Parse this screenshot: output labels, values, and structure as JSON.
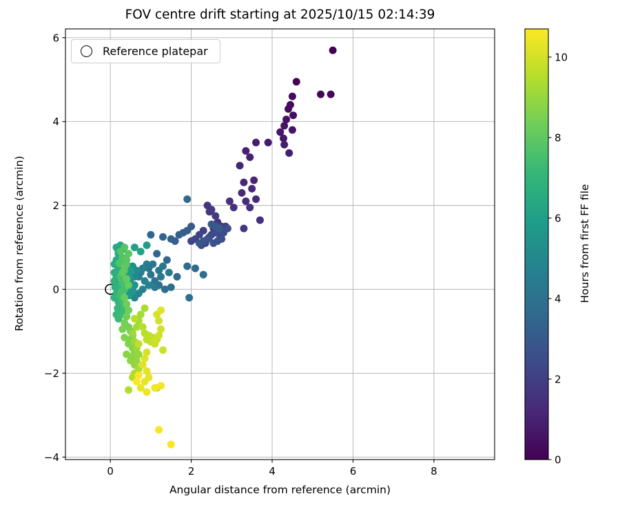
{
  "chart_data": {
    "type": "scatter",
    "title": "FOV centre drift starting at 2025/10/15 02:14:39",
    "xlabel": "Angular distance from reference (arcmin)",
    "ylabel": "Rotation from reference (arcmin)",
    "xlim": [
      -1.11,
      9.5
    ],
    "ylim": [
      -4.06,
      6.21
    ],
    "xticks": [
      0,
      2,
      4,
      6,
      8
    ],
    "yticks": [
      -4,
      -2,
      0,
      2,
      4,
      6
    ],
    "grid": true,
    "grid_color": "#b0b0b0",
    "legend_entries": [
      {
        "label": "Reference platepar",
        "marker": "open-circle"
      }
    ],
    "reference_point": {
      "x": 0,
      "y": 0
    },
    "colorbar": {
      "label": "Hours from first FF file",
      "min": 0,
      "max": 10.7,
      "ticks": [
        0,
        2,
        4,
        6,
        8,
        10
      ],
      "colormap": [
        "#440154",
        "#482878",
        "#3e4989",
        "#31688e",
        "#26828e",
        "#1f9e89",
        "#35b779",
        "#6ece58",
        "#b5de2b",
        "#fde725"
      ]
    },
    "points": [
      [
        5.5,
        5.7,
        0.0
      ],
      [
        4.6,
        4.95,
        0.08
      ],
      [
        5.2,
        4.65,
        0.14
      ],
      [
        5.45,
        4.65,
        0.2
      ],
      [
        4.5,
        4.6,
        0.26
      ],
      [
        4.45,
        4.4,
        0.32
      ],
      [
        4.4,
        4.3,
        0.38
      ],
      [
        4.52,
        4.15,
        0.44
      ],
      [
        4.35,
        4.05,
        0.5
      ],
      [
        4.3,
        3.9,
        0.55
      ],
      [
        4.5,
        3.8,
        0.6
      ],
      [
        4.2,
        3.75,
        0.65
      ],
      [
        4.28,
        3.6,
        0.7
      ],
      [
        3.6,
        3.5,
        0.75
      ],
      [
        3.9,
        3.5,
        0.8
      ],
      [
        4.3,
        3.45,
        0.85
      ],
      [
        4.42,
        3.25,
        0.9
      ],
      [
        3.35,
        3.3,
        0.95
      ],
      [
        3.45,
        3.15,
        1.0
      ],
      [
        3.2,
        2.95,
        1.05
      ],
      [
        3.55,
        2.6,
        1.1
      ],
      [
        3.3,
        2.55,
        1.15
      ],
      [
        3.5,
        2.4,
        1.2
      ],
      [
        3.25,
        2.3,
        1.25
      ],
      [
        3.6,
        2.15,
        1.3
      ],
      [
        3.35,
        2.1,
        1.35
      ],
      [
        3.45,
        1.95,
        1.4
      ],
      [
        3.7,
        1.65,
        1.45
      ],
      [
        2.95,
        2.1,
        1.5
      ],
      [
        3.05,
        1.95,
        1.55
      ],
      [
        2.4,
        2.0,
        1.6
      ],
      [
        2.45,
        1.85,
        1.65
      ],
      [
        3.3,
        1.45,
        1.7
      ],
      [
        2.65,
        1.6,
        1.75
      ],
      [
        2.75,
        1.5,
        1.8
      ],
      [
        2.5,
        1.9,
        1.85
      ],
      [
        2.6,
        1.75,
        1.9
      ],
      [
        2.85,
        1.5,
        1.95
      ],
      [
        2.55,
        1.45,
        2.0
      ],
      [
        2.3,
        1.4,
        2.05
      ],
      [
        2.5,
        1.3,
        2.1
      ],
      [
        2.2,
        1.3,
        2.15
      ],
      [
        2.1,
        1.2,
        2.2
      ],
      [
        2.0,
        1.15,
        2.25
      ],
      [
        2.35,
        1.1,
        2.3
      ],
      [
        2.25,
        1.05,
        2.35
      ],
      [
        2.45,
        1.25,
        2.4
      ],
      [
        2.6,
        1.35,
        2.45
      ],
      [
        2.7,
        1.3,
        2.5
      ],
      [
        2.8,
        1.35,
        2.55
      ],
      [
        2.9,
        1.45,
        2.6
      ],
      [
        2.75,
        1.2,
        2.65
      ],
      [
        2.65,
        1.15,
        2.7
      ],
      [
        2.55,
        1.1,
        2.75
      ],
      [
        2.4,
        1.2,
        2.8
      ],
      [
        2.3,
        1.15,
        2.85
      ],
      [
        2.2,
        1.1,
        2.9
      ],
      [
        2.5,
        1.55,
        2.95
      ],
      [
        2.6,
        1.5,
        3.0
      ],
      [
        2.7,
        1.45,
        3.05
      ],
      [
        2.0,
        1.5,
        3.1
      ],
      [
        1.9,
        1.4,
        3.15
      ],
      [
        1.8,
        1.35,
        3.2
      ],
      [
        1.7,
        1.3,
        3.25
      ],
      [
        1.6,
        1.15,
        3.3
      ],
      [
        1.5,
        1.2,
        3.35
      ],
      [
        1.3,
        1.25,
        3.4
      ],
      [
        1.0,
        1.3,
        3.45
      ],
      [
        1.15,
        0.85,
        3.5
      ],
      [
        1.4,
        0.7,
        3.55
      ],
      [
        1.9,
        2.15,
        3.6
      ],
      [
        1.9,
        0.55,
        3.65
      ],
      [
        2.1,
        0.5,
        3.7
      ],
      [
        1.65,
        0.3,
        3.75
      ],
      [
        2.3,
        0.35,
        3.8
      ],
      [
        1.95,
        -0.2,
        3.85
      ],
      [
        1.5,
        0.05,
        3.9
      ],
      [
        1.35,
        0.0,
        3.95
      ],
      [
        1.2,
        0.1,
        4.0
      ],
      [
        1.1,
        0.2,
        4.05
      ],
      [
        1.0,
        0.35,
        4.1
      ],
      [
        0.95,
        0.5,
        4.15
      ],
      [
        1.05,
        0.6,
        4.2
      ],
      [
        1.2,
        0.45,
        4.25
      ],
      [
        1.3,
        0.55,
        4.3
      ],
      [
        1.45,
        0.4,
        4.35
      ],
      [
        1.25,
        0.3,
        4.4
      ],
      [
        1.1,
        0.05,
        4.45
      ],
      [
        0.9,
        0.6,
        4.5
      ],
      [
        0.8,
        0.5,
        4.55
      ],
      [
        0.75,
        0.4,
        4.6
      ],
      [
        0.7,
        0.3,
        4.65
      ],
      [
        0.85,
        0.2,
        4.7
      ],
      [
        0.95,
        0.1,
        4.75
      ],
      [
        0.8,
        0.0,
        4.8
      ],
      [
        0.7,
        -0.1,
        4.85
      ],
      [
        0.6,
        -0.2,
        4.9
      ],
      [
        0.55,
        0.0,
        4.95
      ],
      [
        0.5,
        0.15,
        5.0
      ],
      [
        0.6,
        0.3,
        5.05
      ],
      [
        0.65,
        0.45,
        5.1
      ],
      [
        0.55,
        0.55,
        5.2
      ],
      [
        0.45,
        0.4,
        5.3
      ],
      [
        0.5,
        0.25,
        5.4
      ],
      [
        0.6,
        0.1,
        5.5
      ],
      [
        0.55,
        -0.05,
        5.6
      ],
      [
        0.45,
        -0.15,
        5.7
      ],
      [
        0.4,
        0.0,
        5.8
      ],
      [
        0.35,
        0.15,
        5.85
      ],
      [
        0.45,
        0.3,
        5.9
      ],
      [
        0.9,
        1.05,
        5.95
      ],
      [
        0.5,
        0.45,
        6.0
      ],
      [
        0.4,
        0.55,
        6.05
      ],
      [
        0.6,
        1.0,
        6.1
      ],
      [
        0.75,
        0.9,
        6.15
      ],
      [
        0.3,
        0.7,
        6.2
      ],
      [
        0.25,
        0.8,
        6.25
      ],
      [
        0.2,
        0.9,
        6.3
      ],
      [
        0.15,
        1.0,
        6.35
      ],
      [
        0.25,
        1.05,
        6.4
      ],
      [
        0.3,
        0.95,
        6.45
      ],
      [
        0.2,
        0.85,
        6.5
      ],
      [
        0.15,
        0.7,
        6.55
      ],
      [
        0.1,
        0.6,
        6.6
      ],
      [
        0.2,
        0.5,
        6.65
      ],
      [
        0.25,
        0.4,
        6.7
      ],
      [
        0.1,
        0.4,
        6.72
      ],
      [
        0.15,
        0.3,
        6.75
      ],
      [
        0.15,
        0.15,
        6.78
      ],
      [
        0.1,
        0.2,
        6.8
      ],
      [
        0.12,
        0.05,
        6.82
      ],
      [
        0.2,
        0.1,
        6.85
      ],
      [
        0.25,
        0.0,
        6.9
      ],
      [
        0.15,
        -0.1,
        6.95
      ],
      [
        0.1,
        -0.2,
        7.0
      ],
      [
        0.2,
        -0.3,
        7.05
      ],
      [
        0.3,
        -0.4,
        7.1
      ],
      [
        0.18,
        -0.45,
        7.12
      ],
      [
        0.25,
        -0.5,
        7.15
      ],
      [
        0.15,
        -0.6,
        7.2
      ],
      [
        0.2,
        -0.7,
        7.25
      ],
      [
        0.3,
        -0.6,
        7.3
      ],
      [
        0.35,
        -0.45,
        7.35
      ],
      [
        0.3,
        -0.3,
        7.4
      ],
      [
        0.25,
        -0.15,
        7.45
      ],
      [
        0.28,
        -0.05,
        7.48
      ],
      [
        0.35,
        0.0,
        7.5
      ],
      [
        0.3,
        0.15,
        7.55
      ],
      [
        0.25,
        0.3,
        7.6
      ],
      [
        0.35,
        0.45,
        7.65
      ],
      [
        0.22,
        0.62,
        7.68
      ],
      [
        0.4,
        0.6,
        7.7
      ],
      [
        0.3,
        0.75,
        7.75
      ],
      [
        0.25,
        0.9,
        7.8
      ],
      [
        0.35,
        1.0,
        7.85
      ],
      [
        0.45,
        0.85,
        7.9
      ],
      [
        0.4,
        0.7,
        7.95
      ],
      [
        0.35,
        0.55,
        8.0
      ],
      [
        0.3,
        0.4,
        8.05
      ],
      [
        0.4,
        0.25,
        8.1
      ],
      [
        0.45,
        0.1,
        8.15
      ],
      [
        0.35,
        -0.2,
        8.2
      ],
      [
        0.4,
        -0.35,
        8.25
      ],
      [
        0.45,
        -0.5,
        8.3
      ],
      [
        0.4,
        -0.65,
        8.35
      ],
      [
        0.35,
        -0.8,
        8.4
      ],
      [
        0.45,
        -0.9,
        8.45
      ],
      [
        0.5,
        -1.0,
        8.5
      ],
      [
        0.3,
        -0.95,
        8.52
      ],
      [
        0.55,
        -1.1,
        8.55
      ],
      [
        0.5,
        -1.2,
        8.6
      ],
      [
        0.35,
        -1.15,
        8.62
      ],
      [
        0.45,
        -1.3,
        8.65
      ],
      [
        0.55,
        -1.4,
        8.7
      ],
      [
        0.6,
        -1.5,
        8.75
      ],
      [
        0.4,
        -1.55,
        8.78
      ],
      [
        0.55,
        -1.6,
        8.8
      ],
      [
        0.5,
        -1.7,
        8.85
      ],
      [
        0.6,
        -1.8,
        8.9
      ],
      [
        0.65,
        -1.7,
        8.95
      ],
      [
        0.7,
        -1.55,
        9.0
      ],
      [
        0.65,
        -1.4,
        9.05
      ],
      [
        0.6,
        -1.25,
        9.1
      ],
      [
        0.55,
        -1.05,
        9.15
      ],
      [
        0.65,
        -0.9,
        9.2
      ],
      [
        0.7,
        -0.75,
        9.25
      ],
      [
        0.75,
        -0.6,
        9.3
      ],
      [
        0.85,
        -0.45,
        9.32
      ],
      [
        0.7,
        -1.9,
        9.35
      ],
      [
        0.6,
        -2.0,
        9.4
      ],
      [
        0.45,
        -2.4,
        9.42
      ],
      [
        0.55,
        -2.1,
        9.45
      ],
      [
        1.15,
        -2.35,
        9.47
      ],
      [
        0.8,
        -0.9,
        9.5
      ],
      [
        0.6,
        -0.7,
        9.52
      ],
      [
        0.85,
        -1.05,
        9.55
      ],
      [
        0.9,
        -1.2,
        9.6
      ],
      [
        0.95,
        -1.1,
        9.65
      ],
      [
        1.0,
        -1.25,
        9.7
      ],
      [
        0.7,
        -1.3,
        9.72
      ],
      [
        1.05,
        -1.15,
        9.75
      ],
      [
        1.1,
        -1.3,
        9.8
      ],
      [
        1.15,
        -1.2,
        9.85
      ],
      [
        1.2,
        -1.1,
        9.9
      ],
      [
        1.3,
        -1.45,
        9.92
      ],
      [
        1.25,
        -0.95,
        9.95
      ],
      [
        1.2,
        -0.75,
        10.0
      ],
      [
        1.15,
        -0.6,
        10.05
      ],
      [
        0.9,
        -1.5,
        10.1
      ],
      [
        0.85,
        -1.65,
        10.15
      ],
      [
        0.8,
        -1.8,
        10.2
      ],
      [
        1.25,
        -0.5,
        10.22
      ],
      [
        0.9,
        -1.95,
        10.25
      ],
      [
        0.95,
        -2.1,
        10.3
      ],
      [
        0.85,
        -2.2,
        10.35
      ],
      [
        0.75,
        -2.35,
        10.4
      ],
      [
        0.9,
        -2.45,
        10.45
      ],
      [
        1.1,
        -2.35,
        10.5
      ],
      [
        1.25,
        -2.3,
        10.55
      ],
      [
        1.2,
        -3.35,
        10.6
      ],
      [
        1.5,
        -3.7,
        10.63
      ],
      [
        0.7,
        -2.05,
        10.66
      ],
      [
        0.65,
        -2.2,
        10.7
      ]
    ]
  }
}
